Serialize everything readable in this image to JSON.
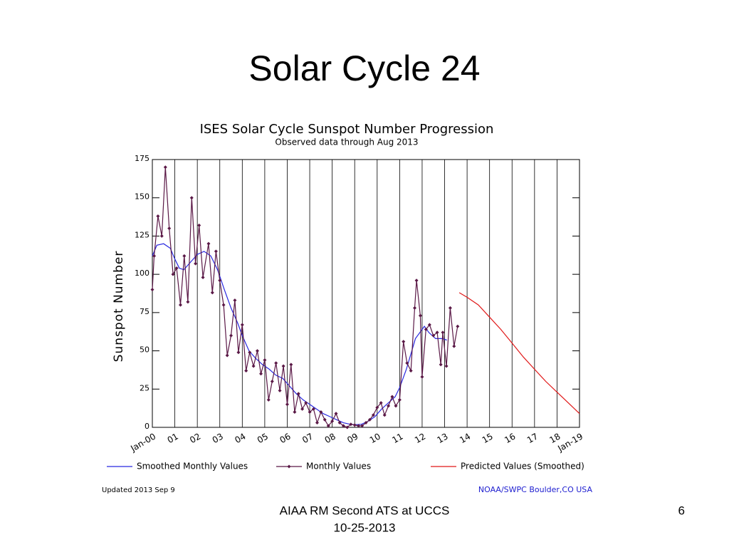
{
  "slide_title": "Solar Cycle 24",
  "chart_data": {
    "type": "line",
    "title": "ISES Solar Cycle Sunspot Number Progression",
    "subtitle": "Observed data through Aug 2013",
    "ylabel": "Sunspot Number",
    "xlim": [
      2000,
      2019
    ],
    "ylim": [
      0,
      175
    ],
    "yticks": [
      0,
      25,
      50,
      75,
      100,
      125,
      150,
      175
    ],
    "xticks": [
      {
        "value": 2000,
        "label": "Jan-00"
      },
      {
        "value": 2001,
        "label": "01"
      },
      {
        "value": 2002,
        "label": "02"
      },
      {
        "value": 2003,
        "label": "03"
      },
      {
        "value": 2004,
        "label": "04"
      },
      {
        "value": 2005,
        "label": "05"
      },
      {
        "value": 2006,
        "label": "06"
      },
      {
        "value": 2007,
        "label": "07"
      },
      {
        "value": 2008,
        "label": "08"
      },
      {
        "value": 2009,
        "label": "09"
      },
      {
        "value": 2010,
        "label": "10"
      },
      {
        "value": 2011,
        "label": "11"
      },
      {
        "value": 2012,
        "label": "12"
      },
      {
        "value": 2013,
        "label": "13"
      },
      {
        "value": 2014,
        "label": "14"
      },
      {
        "value": 2015,
        "label": "15"
      },
      {
        "value": 2016,
        "label": "16"
      },
      {
        "value": 2017,
        "label": "17"
      },
      {
        "value": 2018,
        "label": "18"
      },
      {
        "value": 2019,
        "label": "Jan-19"
      }
    ],
    "grid": true,
    "series": [
      {
        "name": "Smoothed Monthly Values",
        "color": "#2828e0",
        "markers": false,
        "x": [
          2000.0,
          2000.2,
          2000.5,
          2000.8,
          2001.0,
          2001.2,
          2001.4,
          2001.7,
          2002.0,
          2002.3,
          2002.6,
          2002.9,
          2003.2,
          2003.5,
          2003.8,
          2004.0,
          2004.3,
          2004.6,
          2004.9,
          2005.2,
          2005.5,
          2005.8,
          2006.1,
          2006.4,
          2006.7,
          2007.0,
          2007.3,
          2007.6,
          2007.9,
          2008.2,
          2008.5,
          2008.8,
          2009.0,
          2009.3,
          2009.6,
          2009.9,
          2010.2,
          2010.5,
          2010.8,
          2011.0,
          2011.3,
          2011.5,
          2011.7,
          2011.9,
          2012.1,
          2012.3,
          2012.6,
          2012.9,
          2013.1
        ],
        "values": [
          112,
          119,
          120,
          117,
          110,
          104,
          103,
          108,
          113,
          115,
          112,
          103,
          90,
          78,
          68,
          60,
          50,
          45,
          41,
          38,
          34,
          32,
          27,
          22,
          18,
          15,
          12,
          9,
          7,
          5,
          3,
          2,
          1.7,
          2,
          4,
          7,
          12,
          16,
          20,
          26,
          38,
          48,
          58,
          62,
          66,
          62,
          58,
          58,
          57
        ]
      },
      {
        "name": "Monthly Values",
        "color": "#5a1846",
        "markers": true,
        "x": [
          2000.0,
          2000.08,
          2000.25,
          2000.42,
          2000.58,
          2000.75,
          2000.92,
          2001.08,
          2001.25,
          2001.42,
          2001.58,
          2001.75,
          2001.92,
          2002.08,
          2002.25,
          2002.5,
          2002.67,
          2002.83,
          2003.0,
          2003.17,
          2003.33,
          2003.5,
          2003.67,
          2003.83,
          2004.0,
          2004.17,
          2004.33,
          2004.5,
          2004.67,
          2004.83,
          2005.0,
          2005.17,
          2005.33,
          2005.5,
          2005.67,
          2005.83,
          2006.0,
          2006.17,
          2006.33,
          2006.5,
          2006.67,
          2006.83,
          2007.0,
          2007.17,
          2007.33,
          2007.5,
          2007.67,
          2007.83,
          2008.0,
          2008.17,
          2008.33,
          2008.5,
          2008.67,
          2008.83,
          2009.0,
          2009.17,
          2009.33,
          2009.5,
          2009.67,
          2009.83,
          2010.0,
          2010.17,
          2010.33,
          2010.5,
          2010.67,
          2010.83,
          2011.0,
          2011.17,
          2011.33,
          2011.5,
          2011.67,
          2011.75,
          2011.92,
          2012.0,
          2012.17,
          2012.33,
          2012.5,
          2012.67,
          2012.83,
          2012.92,
          2013.08,
          2013.25,
          2013.42,
          2013.58
        ],
        "values": [
          90,
          112,
          138,
          125,
          170,
          130,
          100,
          104,
          80,
          112,
          82,
          150,
          107,
          132,
          98,
          120,
          88,
          115,
          96,
          80,
          47,
          60,
          83,
          49,
          67,
          37,
          49,
          40,
          50,
          35,
          44,
          18,
          30,
          42,
          24,
          40,
          15,
          41,
          10,
          22,
          12,
          16,
          10,
          12,
          3,
          10,
          5,
          1,
          4,
          9,
          3,
          1,
          0,
          2,
          1.5,
          1,
          1,
          3,
          5,
          8,
          13,
          16,
          8,
          14,
          20,
          14,
          18,
          56,
          42,
          37,
          78,
          96,
          73,
          33,
          64,
          67,
          60,
          62,
          41,
          62,
          40,
          78,
          53,
          66
        ]
      },
      {
        "name": "Predicted Values (Smoothed)",
        "color": "#e01818",
        "markers": false,
        "x": [
          2013.65,
          2014.0,
          2014.5,
          2015.0,
          2015.5,
          2016.0,
          2016.5,
          2017.0,
          2017.5,
          2018.0,
          2018.5,
          2019.0
        ],
        "values": [
          88,
          85,
          80,
          72,
          64,
          55,
          46,
          38,
          30,
          23,
          16,
          9
        ]
      }
    ],
    "updated": "Updated 2013 Sep  9",
    "source": "NOAA/SWPC Boulder,CO USA"
  },
  "footer": {
    "text": "AIAA RM Second ATS at UCCS",
    "date": "10-25-2013",
    "page": "6"
  }
}
